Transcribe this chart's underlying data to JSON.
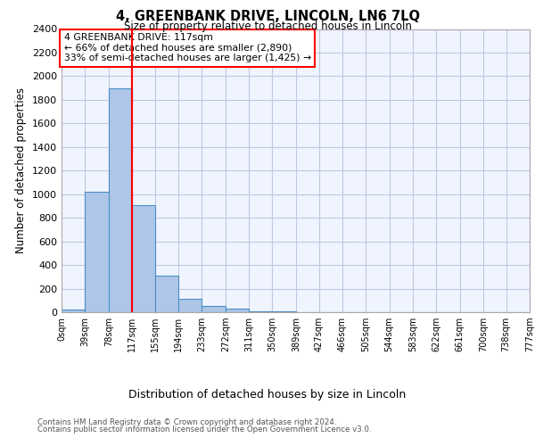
{
  "title": "4, GREENBANK DRIVE, LINCOLN, LN6 7LQ",
  "subtitle": "Size of property relative to detached houses in Lincoln",
  "xlabel": "Distribution of detached houses by size in Lincoln",
  "ylabel": "Number of detached properties",
  "annotation_line1": "4 GREENBANK DRIVE: 117sqm",
  "annotation_line2": "← 66% of detached houses are smaller (2,890)",
  "annotation_line3": "33% of semi-detached houses are larger (1,425) →",
  "property_line_x": 117,
  "bar_edges": [
    0,
    39,
    78,
    117,
    155,
    194,
    233,
    272,
    311,
    350,
    389,
    427,
    466,
    505,
    544,
    583,
    622,
    661,
    700,
    738,
    777
  ],
  "bar_heights": [
    25,
    1020,
    1900,
    910,
    310,
    110,
    50,
    30,
    10,
    5,
    3,
    2,
    2,
    2,
    2,
    1,
    1,
    1,
    1,
    1
  ],
  "bar_color": "#aec6e8",
  "bar_edge_color": "#4a90c4",
  "vline_color": "red",
  "annotation_box_color": "red",
  "background_color": "#f0f4ff",
  "grid_color": "#c0c8e0",
  "footer_line1": "Contains HM Land Registry data © Crown copyright and database right 2024.",
  "footer_line2": "Contains public sector information licensed under the Open Government Licence v3.0.",
  "ylim": [
    0,
    2400
  ],
  "yticks": [
    0,
    200,
    400,
    600,
    800,
    1000,
    1200,
    1400,
    1600,
    1800,
    2000,
    2200,
    2400
  ]
}
